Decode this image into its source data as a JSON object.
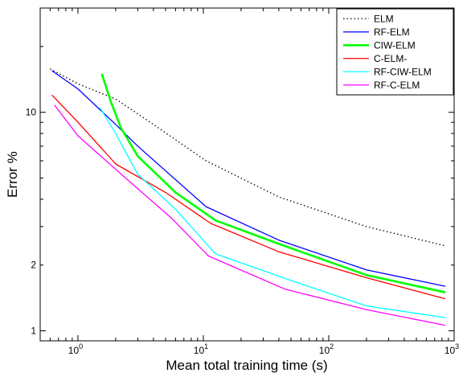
{
  "chart_data": {
    "type": "line",
    "xlabel": "Mean total training time (s)",
    "ylabel": "Error %",
    "xscale": "log",
    "yscale": "log",
    "xlim": [
      0.5,
      1000
    ],
    "ylim": [
      0.9,
      30
    ],
    "grid": false,
    "legend_position": "top-right",
    "x_ticks": [
      {
        "value": 1,
        "base": "10",
        "exp": "0"
      },
      {
        "value": 10,
        "base": "10",
        "exp": "1"
      },
      {
        "value": 100,
        "base": "10",
        "exp": "2"
      },
      {
        "value": 1000,
        "base": "10",
        "exp": "3"
      }
    ],
    "y_ticks": [
      {
        "value": 1,
        "label": "1"
      },
      {
        "value": 2,
        "label": "2"
      },
      {
        "value": 10,
        "label": "10"
      }
    ],
    "series": [
      {
        "name": "ELM",
        "color": "#000000",
        "dash": "dotted",
        "width": 1.3,
        "x": [
          0.6,
          1.0,
          2.0,
          4.0,
          10.5,
          40,
          200,
          850
        ],
        "y": [
          15.8,
          13.5,
          11.5,
          8.8,
          6.0,
          4.1,
          3.0,
          2.45
        ]
      },
      {
        "name": "RF-ELM",
        "color": "#0000ff",
        "dash": "solid",
        "width": 1.3,
        "x": [
          0.62,
          1.0,
          2.0,
          3.0,
          10.5,
          40,
          200,
          850
        ],
        "y": [
          15.5,
          12.8,
          8.8,
          7.0,
          3.7,
          2.6,
          1.9,
          1.6
        ]
      },
      {
        "name": "CIW-ELM",
        "color": "#00ff00",
        "dash": "solid",
        "width": 2.6,
        "x": [
          1.55,
          1.85,
          2.2,
          3.0,
          6.0,
          12.5,
          40,
          200,
          850
        ],
        "y": [
          15.0,
          11.0,
          8.5,
          6.3,
          4.3,
          3.2,
          2.5,
          1.8,
          1.5
        ]
      },
      {
        "name": "C-ELM-",
        "color": "#ff0000",
        "dash": "solid",
        "width": 1.3,
        "x": [
          0.62,
          1.0,
          2.0,
          5.0,
          11.5,
          40,
          200,
          850
        ],
        "y": [
          12.0,
          9.0,
          5.8,
          4.3,
          3.1,
          2.3,
          1.75,
          1.4
        ]
      },
      {
        "name": "RF-CIW-ELM",
        "color": "#00ffff",
        "dash": "solid",
        "width": 1.3,
        "x": [
          1.5,
          2.0,
          3.0,
          6.0,
          12.5,
          50,
          200,
          850
        ],
        "y": [
          10.5,
          8.0,
          5.2,
          3.6,
          2.25,
          1.7,
          1.3,
          1.15
        ]
      },
      {
        "name": "RF-C-ELM",
        "color": "#ff00ff",
        "dash": "solid",
        "width": 1.3,
        "x": [
          0.65,
          1.0,
          2.5,
          5.5,
          11.0,
          45,
          200,
          850
        ],
        "y": [
          10.8,
          7.8,
          4.9,
          3.3,
          2.2,
          1.55,
          1.25,
          1.06
        ]
      }
    ]
  }
}
